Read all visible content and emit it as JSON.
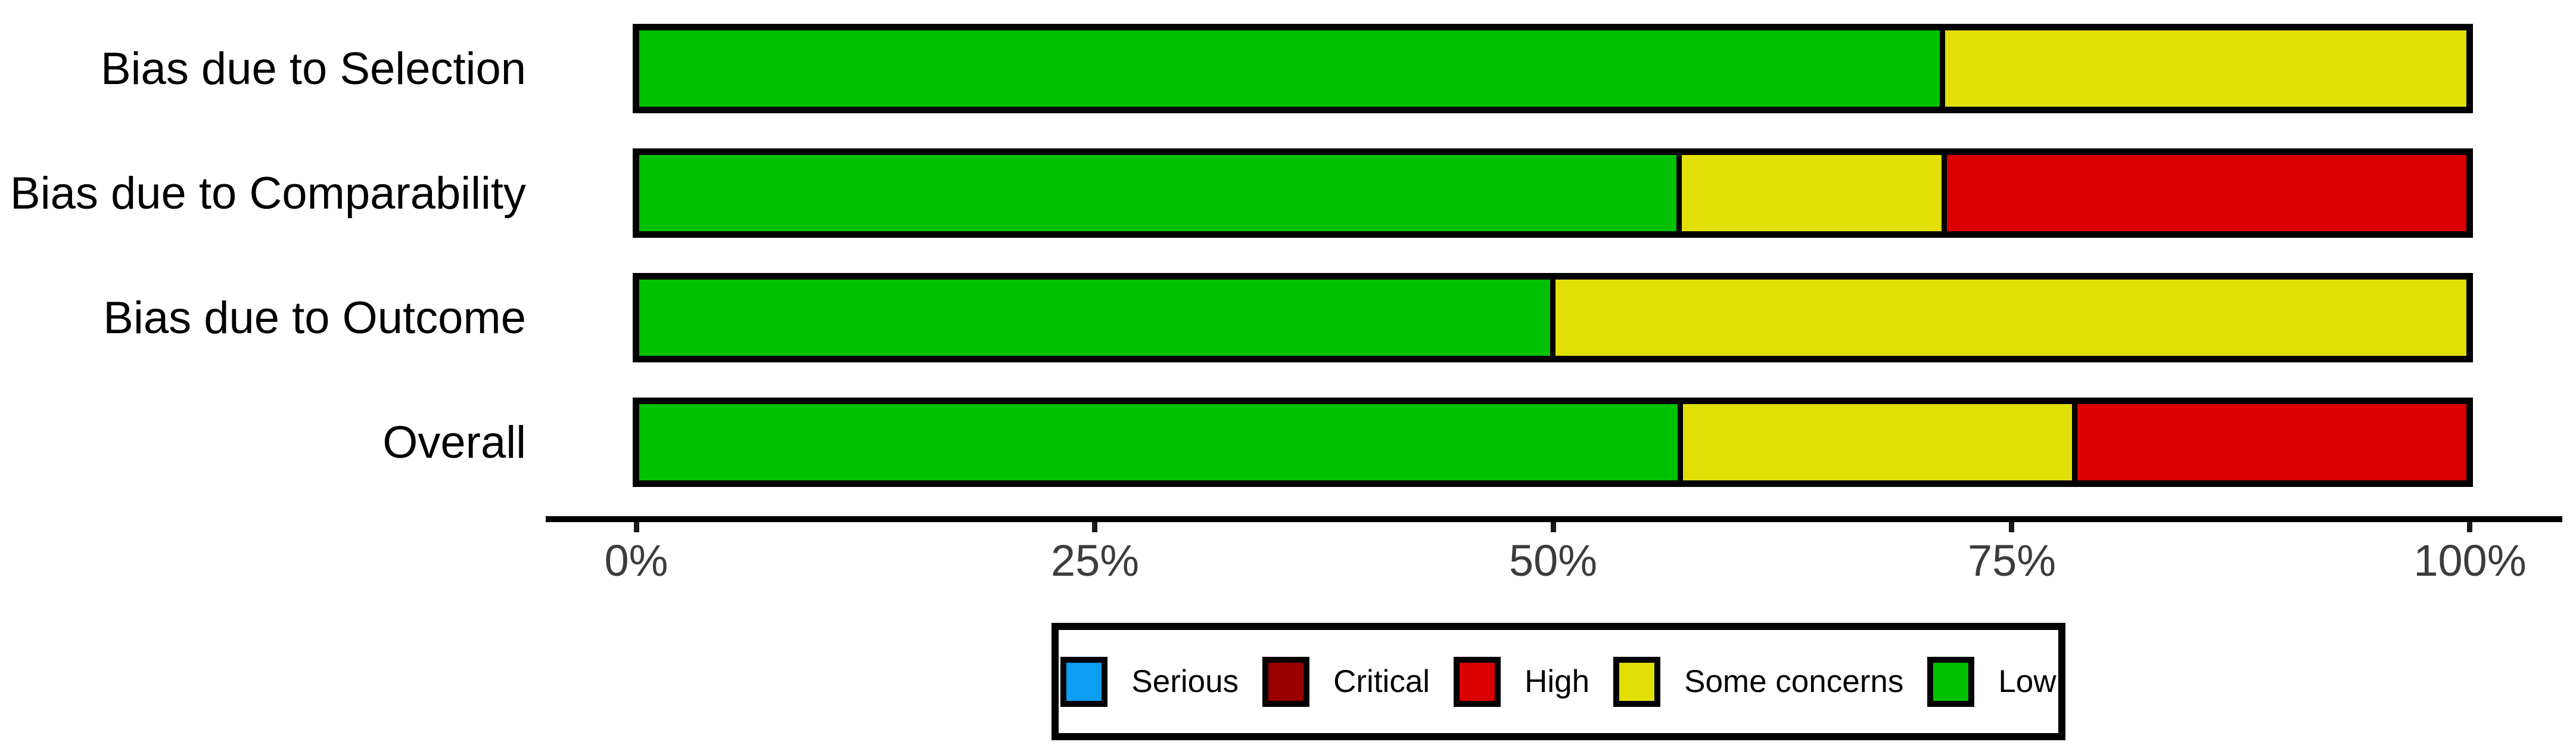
{
  "chart_data": {
    "type": "bar",
    "orientation": "horizontal_stacked_percent",
    "title": "",
    "xlabel": "",
    "ylabel": "",
    "categories": [
      "Bias due to Selection",
      "Bias due to Comparability",
      "Bias due to Outcome",
      "Overall"
    ],
    "series": [
      {
        "name": "Serious",
        "color": "#0D9DF2",
        "values": [
          0,
          0,
          0,
          0
        ]
      },
      {
        "name": "Critical",
        "color": "#9B0000",
        "values": [
          0,
          0,
          0,
          0
        ]
      },
      {
        "name": "High",
        "color": "#DC0000",
        "values": [
          0,
          28.6,
          0,
          21.4
        ]
      },
      {
        "name": "Some concerns",
        "color": "#E2DF07",
        "values": [
          28.6,
          14.3,
          50.0,
          21.4
        ]
      },
      {
        "name": "Low",
        "color": "#02C100",
        "values": [
          71.4,
          57.1,
          50.0,
          57.1
        ]
      }
    ],
    "stack_order": [
      "Low",
      "Some concerns",
      "High",
      "Critical",
      "Serious"
    ],
    "xlim": [
      0,
      100
    ],
    "x_ticks": [
      "0%",
      "25%",
      "50%",
      "75%",
      "100%"
    ],
    "grid": false,
    "bar_border_color": "#000000",
    "axis_line_color": "#000000",
    "tick_label_color": "#3c3c3c",
    "legend": {
      "position": "bottom",
      "border_color": "#000000",
      "entries": [
        "Serious",
        "Critical",
        "High",
        "Some concerns",
        "Low"
      ]
    }
  }
}
